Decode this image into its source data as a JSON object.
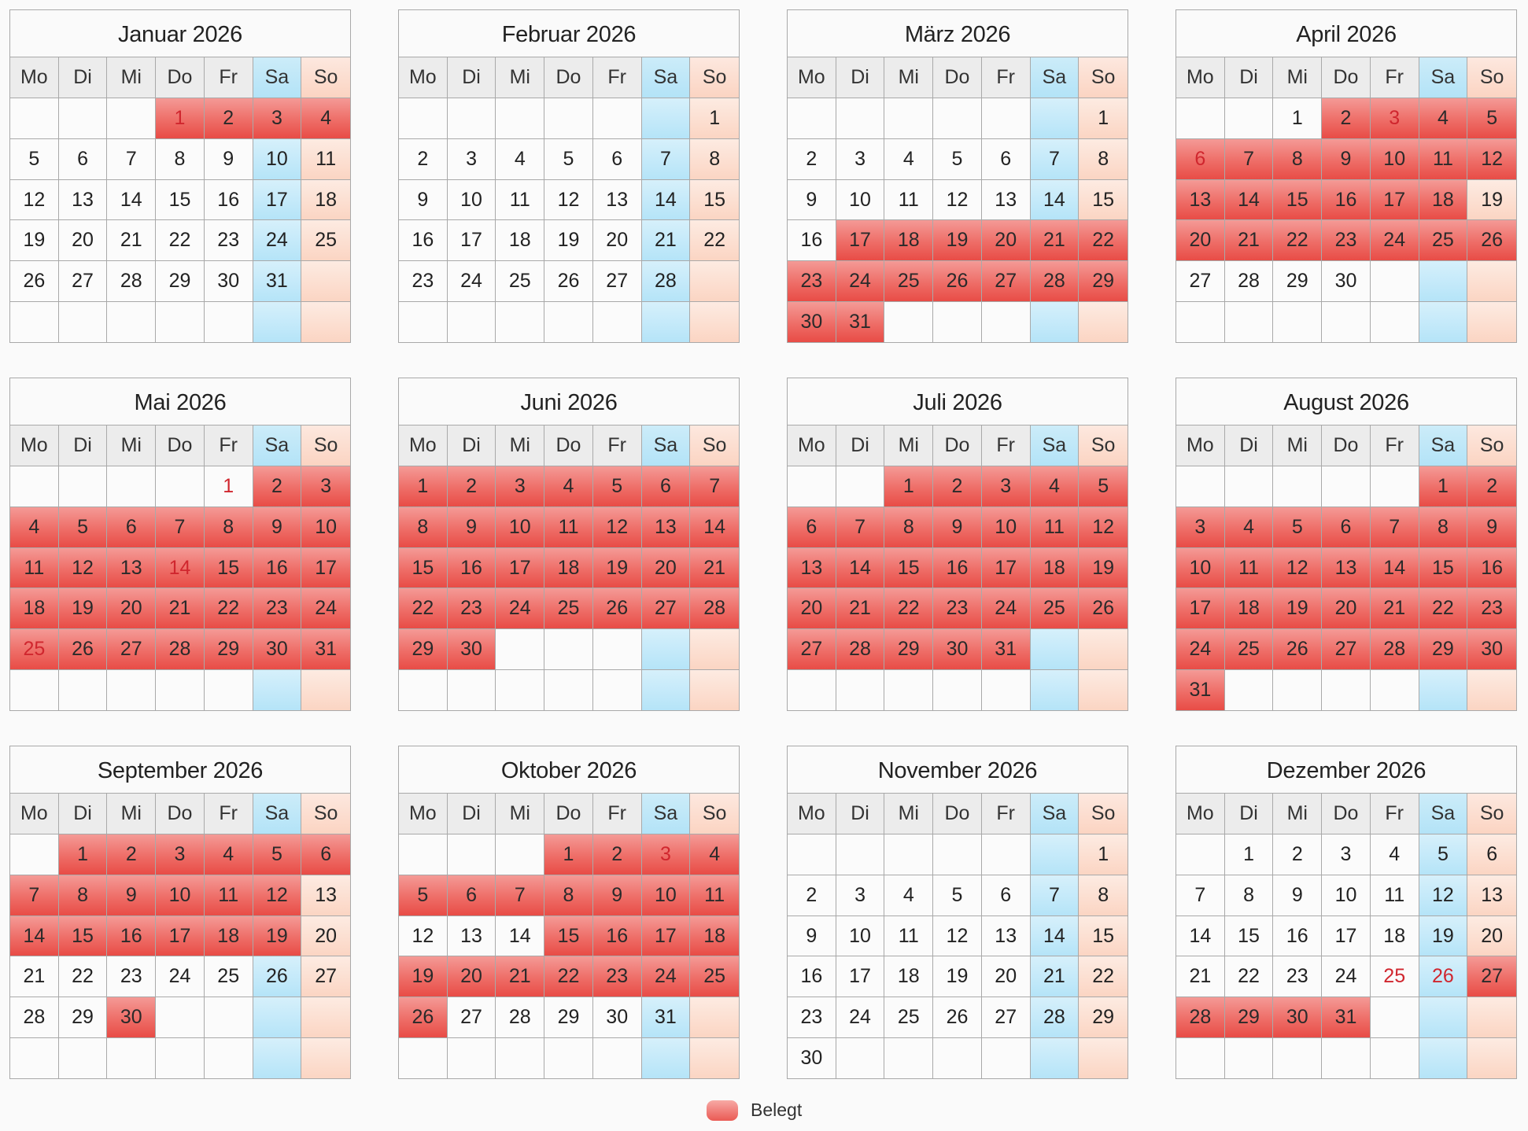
{
  "year": 2026,
  "weekdays": [
    "Mo",
    "Di",
    "Mi",
    "Do",
    "Fr",
    "Sa",
    "So"
  ],
  "legend": {
    "label": "Belegt",
    "color": "#ea5a54"
  },
  "colors": {
    "booked": "#ea5a54",
    "saturday": "#b5e4f8",
    "sunday": "#fbd5c3",
    "holiday_text": "#d0262e"
  },
  "months": [
    {
      "title": "Januar 2026",
      "offset": 3,
      "days": 31,
      "booked": [
        [
          1,
          4
        ]
      ],
      "holidays": [
        1
      ]
    },
    {
      "title": "Februar 2026",
      "offset": 6,
      "days": 28,
      "booked": [],
      "holidays": []
    },
    {
      "title": "März 2026",
      "offset": 6,
      "days": 31,
      "booked": [
        [
          17,
          31
        ]
      ],
      "holidays": []
    },
    {
      "title": "April 2026",
      "offset": 2,
      "days": 30,
      "booked": [
        [
          2,
          18
        ],
        [
          20,
          26
        ]
      ],
      "holidays": [
        3,
        6
      ]
    },
    {
      "title": "Mai 2026",
      "offset": 4,
      "days": 31,
      "booked": [
        [
          2,
          31
        ]
      ],
      "holidays": [
        1,
        14,
        25
      ]
    },
    {
      "title": "Juni 2026",
      "offset": 0,
      "days": 30,
      "booked": [
        [
          1,
          30
        ]
      ],
      "holidays": []
    },
    {
      "title": "Juli 2026",
      "offset": 2,
      "days": 31,
      "booked": [
        [
          1,
          31
        ]
      ],
      "holidays": []
    },
    {
      "title": "August 2026",
      "offset": 5,
      "days": 31,
      "booked": [
        [
          1,
          31
        ]
      ],
      "holidays": []
    },
    {
      "title": "September 2026",
      "offset": 1,
      "days": 30,
      "booked": [
        [
          1,
          12
        ],
        [
          14,
          19
        ],
        [
          30,
          30
        ]
      ],
      "holidays": []
    },
    {
      "title": "Oktober 2026",
      "offset": 3,
      "days": 31,
      "booked": [
        [
          1,
          11
        ],
        [
          15,
          26
        ]
      ],
      "holidays": [
        3
      ]
    },
    {
      "title": "November 2026",
      "offset": 6,
      "days": 30,
      "booked": [],
      "holidays": []
    },
    {
      "title": "Dezember 2026",
      "offset": 1,
      "days": 31,
      "booked": [
        [
          27,
          31
        ]
      ],
      "holidays": [
        25,
        26
      ]
    }
  ]
}
